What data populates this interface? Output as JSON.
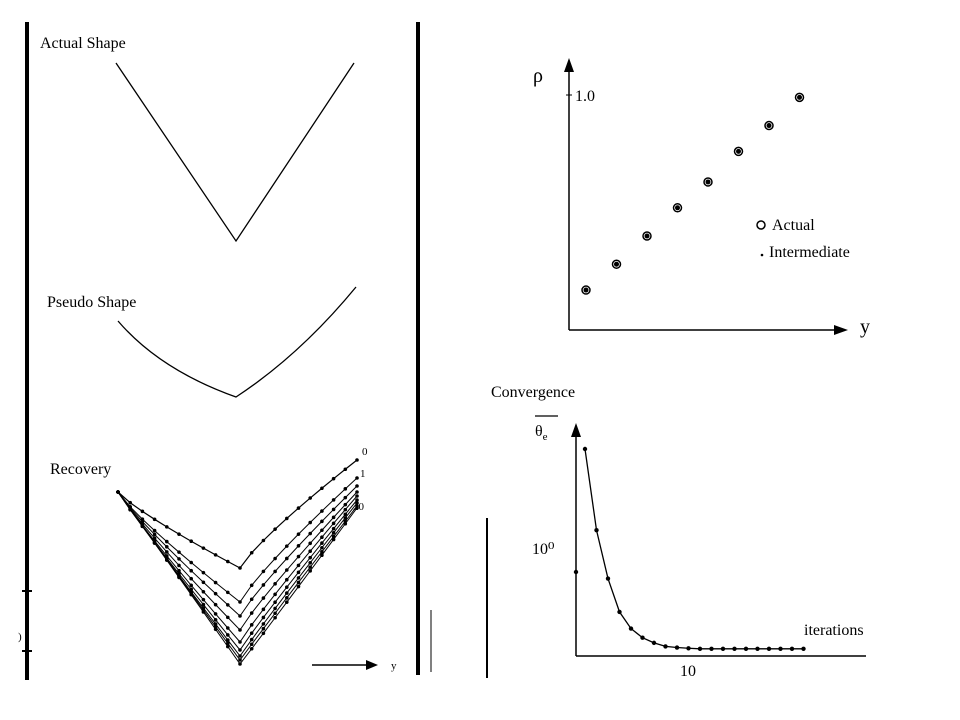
{
  "panels": {
    "actual_shape": {
      "title": "Actual Shape"
    },
    "pseudo_shape": {
      "title": "Pseudo Shape"
    },
    "recovery": {
      "title": "Recovery",
      "iteration_labels": [
        "0",
        "1",
        "20"
      ],
      "axis_label": "y"
    },
    "rho_plot": {
      "ylabel": "ρ",
      "ytick": "1.0",
      "xlabel": "y",
      "legend": {
        "actual": "Actual",
        "intermediate": "Intermediate"
      }
    },
    "convergence_plot": {
      "title": "Convergence",
      "ylabel_main": "θ",
      "ylabel_sub": "e",
      "ytick": "10⁰",
      "xlabel": "iterations",
      "xtick": "10"
    }
  },
  "chart_data": [
    {
      "type": "scatter",
      "x": [
        1,
        2,
        3,
        4,
        5,
        6,
        7,
        8
      ],
      "y": [
        0.17,
        0.28,
        0.4,
        0.52,
        0.63,
        0.76,
        0.87,
        0.99
      ],
      "xlabel": "y",
      "ylabel": "ρ",
      "ylim": [
        0,
        1.2
      ],
      "grid": false,
      "legend_position": "right"
    },
    {
      "type": "line",
      "x": [
        1,
        2,
        3,
        4,
        5,
        6,
        7,
        8,
        9,
        10,
        11,
        12,
        13,
        14,
        15,
        16,
        17,
        18,
        19,
        20
      ],
      "y": [
        8,
        3.2,
        1.3,
        0.45,
        0.18,
        0.08,
        0.04,
        0.02,
        0.015,
        0.012,
        0.01,
        0.01,
        0.01,
        0.01,
        0.01,
        0.01,
        0.01,
        0.01,
        0.01,
        0.01
      ],
      "xlabel": "iterations",
      "ylabel": "θe",
      "grid": false
    }
  ]
}
